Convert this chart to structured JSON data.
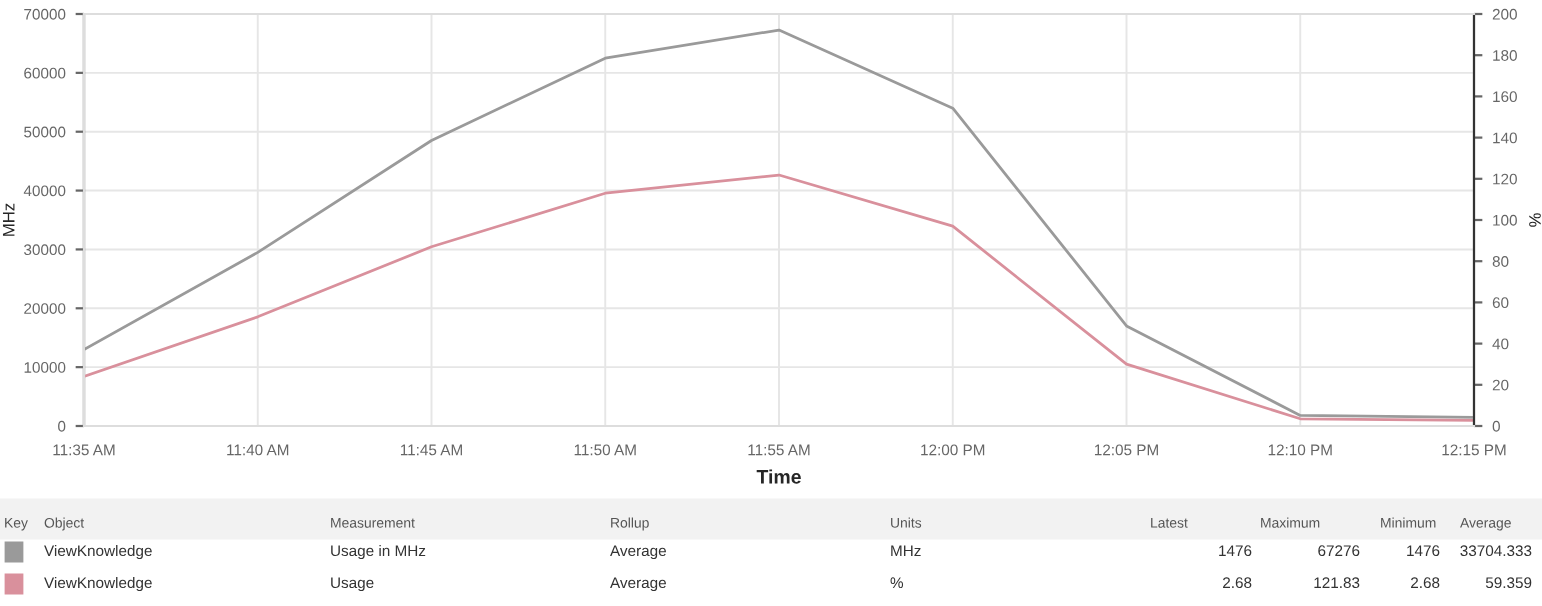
{
  "chart_data": {
    "type": "line",
    "xlabel": "Time",
    "ylabel": "MHz",
    "y2label": "%",
    "categories": [
      "11:35 AM",
      "11:40 AM",
      "11:45 AM",
      "11:50 AM",
      "11:55 AM",
      "12:00 PM",
      "12:05 PM",
      "12:10 PM",
      "12:15 PM"
    ],
    "series": [
      {
        "color": "#9a9a9a",
        "values": [
          13000,
          29500,
          48500,
          62500,
          67276,
          54000,
          17000,
          1800,
          1476
        ]
      },
      {
        "color": "#d9909c",
        "axis": "y2",
        "values": [
          24,
          53,
          87,
          113,
          121.83,
          97,
          30,
          3.5,
          2.68
        ]
      }
    ],
    "ylim": [
      0,
      70000
    ],
    "yticks": [
      0,
      10000,
      20000,
      30000,
      40000,
      50000,
      60000,
      70000
    ],
    "y2lim": [
      0,
      200
    ],
    "y2ticks": [
      0,
      20,
      40,
      60,
      80,
      100,
      120,
      140,
      160,
      180,
      200
    ],
    "grid": true,
    "legend": false,
    "marker": "none",
    "line_style": "solid",
    "annotations": [
      "Key",
      "Object",
      "Measurement",
      "Rollup",
      "Units",
      "Latest",
      "Maximum",
      "Minimum",
      "Average",
      "ViewKnowledge",
      "Usage in MHz",
      "Average",
      "MHz",
      "1476",
      "67276",
      "1476",
      "33704.333",
      "ViewKnowledge",
      "Usage",
      "Average",
      "%",
      "2.68",
      "121.83",
      "2.68",
      "59.359"
    ]
  }
}
